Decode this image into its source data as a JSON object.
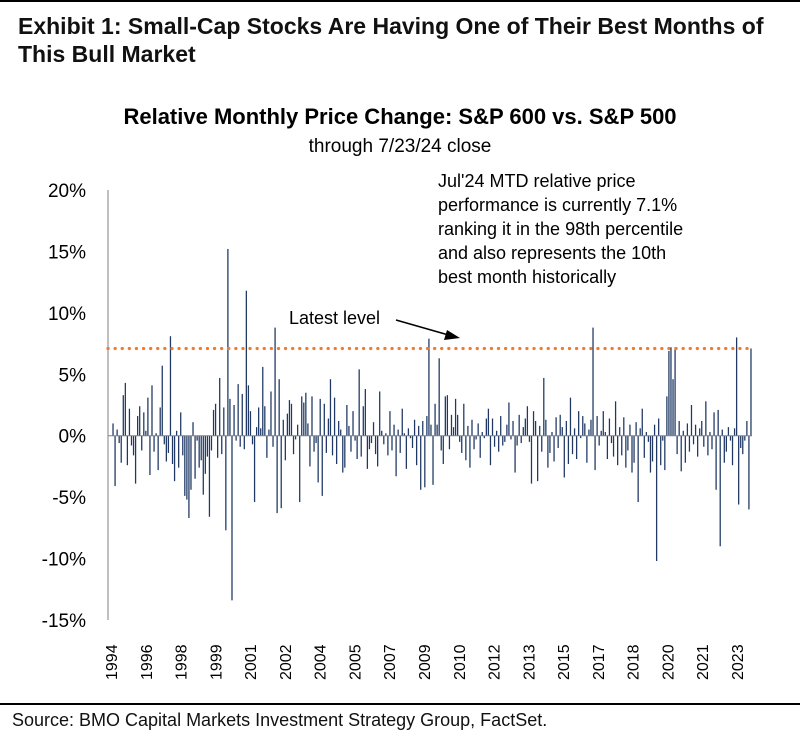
{
  "header": {
    "line1": "Exhibit 1: Small-Cap Stocks Are Having One of Their Best Months of",
    "line2": "This Bull Market"
  },
  "footer": {
    "source": "Source: BMO Capital Markets Investment Strategy Group, FactSet."
  },
  "colors": {
    "bar": "#1f3864",
    "latest_line": "#ed7d31",
    "axis": "#808080",
    "text": "#000000"
  },
  "chart_data": {
    "type": "bar",
    "title": "Relative Monthly Price Change: S&P 600 vs. S&P 500",
    "subtitle": "through 7/23/24 close",
    "xlabel": "",
    "ylabel": "",
    "ylim": [
      -15,
      20
    ],
    "y_ticks": [
      20,
      15,
      10,
      5,
      0,
      -5,
      -10,
      -15
    ],
    "y_tick_labels": [
      "20%",
      "15%",
      "10%",
      "5%",
      "0%",
      "-5%",
      "-10%",
      "-15%"
    ],
    "x_tick_labels": [
      "1994",
      "1996",
      "1998",
      "1999",
      "2001",
      "2002",
      "2004",
      "2005",
      "2007",
      "2009",
      "2010",
      "2012",
      "2013",
      "2015",
      "2017",
      "2018",
      "2020",
      "2021",
      "2023"
    ],
    "latest_level": 7.1,
    "latest_label": "Latest level",
    "annotation_lines": [
      "Jul'24 MTD relative price",
      "performance is currently 7.1%",
      "ranking it in the 98th percentile",
      "and also represents the 10th",
      "best month historically"
    ],
    "start_month": "1994-01",
    "end_month": "2024-07",
    "series": [
      {
        "name": "S&P 600 vs. S&P 500 relative monthly price change (%)",
        "values": [
          1.0,
          -4.1,
          0.5,
          -0.6,
          -2.2,
          3.3,
          4.3,
          -2.4,
          2.2,
          -0.8,
          -1.6,
          -3.9,
          1.6,
          2.4,
          -1.2,
          1.9,
          0.4,
          3.1,
          -3.2,
          4.1,
          -1.3,
          0.2,
          -2.8,
          2.3,
          5.7,
          -0.7,
          -2.1,
          -1.4,
          8.1,
          -2.3,
          -3.7,
          0.4,
          -2.6,
          1.9,
          -1.6,
          -4.9,
          -5.2,
          -6.7,
          -4.4,
          1.1,
          -3.5,
          -0.4,
          -2.6,
          -2.0,
          -4.8,
          -3.1,
          -1.7,
          -6.6,
          -1.2,
          2.1,
          2.6,
          -1.8,
          4.7,
          -1.5,
          2.3,
          -7.7,
          15.2,
          3.0,
          -13.4,
          2.5,
          -0.4,
          4.2,
          -0.9,
          3.4,
          -1.1,
          11.8,
          4.1,
          2.0,
          -0.7,
          -5.4,
          0.7,
          2.3,
          0.6,
          5.6,
          2.4,
          -1.8,
          0.5,
          3.6,
          -0.9,
          8.8,
          -6.3,
          4.6,
          -5.9,
          1.3,
          -2.0,
          1.8,
          2.9,
          2.6,
          -1.5,
          -0.3,
          0.9,
          -5.4,
          3.2,
          2.7,
          3.5,
          1.0,
          -2.5,
          3.2,
          -1.3,
          -0.6,
          -3.8,
          3.0,
          -4.9,
          2.6,
          -1.4,
          1.4,
          4.6,
          -1.6,
          3.1,
          -2.3,
          1.2,
          0.5,
          -3.0,
          -2.6,
          2.5,
          0.8,
          -1.3,
          2.0,
          -0.4,
          -1.9,
          5.4,
          -1.7,
          2.4,
          3.8,
          -2.7,
          -1.1,
          -0.6,
          1.1,
          -1.5,
          -2.5,
          3.6,
          0.4,
          -0.7,
          0.2,
          -1.6,
          2.0,
          -1.2,
          0.9,
          -3.3,
          0.5,
          -1.4,
          2.2,
          0.2,
          -2.7,
          0.6,
          -0.2,
          -1.0,
          1.3,
          -2.4,
          0.8,
          -4.4,
          1.2,
          -4.2,
          1.6,
          7.9,
          0.9,
          -4.0,
          2.6,
          0.9,
          6.3,
          -1.2,
          -2.3,
          3.2,
          3.3,
          -1.1,
          1.7,
          0.7,
          3.0,
          1.7,
          -0.5,
          -1.4,
          2.6,
          -2.0,
          0.8,
          -2.6,
          1.3,
          -1.1,
          -0.3,
          1.0,
          -1.8,
          0.3,
          -0.2,
          1.4,
          2.2,
          -2.4,
          1.4,
          -0.9,
          0.4,
          -1.3,
          1.6,
          -0.8,
          -0.5,
          0.9,
          2.7,
          -0.3,
          1.2,
          -3.0,
          -0.8,
          1.7,
          -0.6,
          0.7,
          1.4,
          2.4,
          -0.5,
          -3.9,
          2.0,
          1.2,
          -3.7,
          0.8,
          -1.3,
          4.7,
          1.3,
          -2.6,
          -1.4,
          0.3,
          -2.1,
          1.5,
          -1.0,
          1.7,
          0.7,
          -3.4,
          1.2,
          -2.3,
          3.1,
          -1.5,
          0.6,
          -1.9,
          2.0,
          -0.2,
          1.6,
          1.0,
          -2.2,
          0.5,
          1.3,
          8.8,
          -2.8,
          1.6,
          -0.8,
          0.4,
          2.0,
          0.3,
          -1.9,
          1.4,
          -0.6,
          -1.7,
          2.8,
          -2.4,
          0.7,
          -1.6,
          1.5,
          -2.6,
          -1.2,
          0.9,
          -3.0,
          -2.2,
          1.1,
          -5.4,
          0.6,
          2.2,
          -1.8,
          0.3,
          -0.5,
          -3.0,
          -2.1,
          0.9,
          -10.2,
          1.4,
          -2.4,
          -0.4,
          -2.8,
          3.2,
          6.9,
          7.2,
          4.6,
          7.2,
          -1.5,
          1.2,
          -2.9,
          0.4,
          -2.2,
          1.0,
          -1.3,
          2.5,
          -0.7,
          0.9,
          -1.7,
          0.6,
          1.2,
          -0.9,
          2.8,
          -1.6,
          0.3,
          -1.1,
          1.9,
          -4.4,
          2.1,
          -9.0,
          0.5,
          -2.2,
          -1.3,
          0.7,
          -0.4,
          -2.4,
          0.6,
          8.0,
          -5.6,
          -1.0,
          -1.5,
          -0.4,
          1.2,
          -6.0,
          7.1
        ]
      }
    ]
  }
}
